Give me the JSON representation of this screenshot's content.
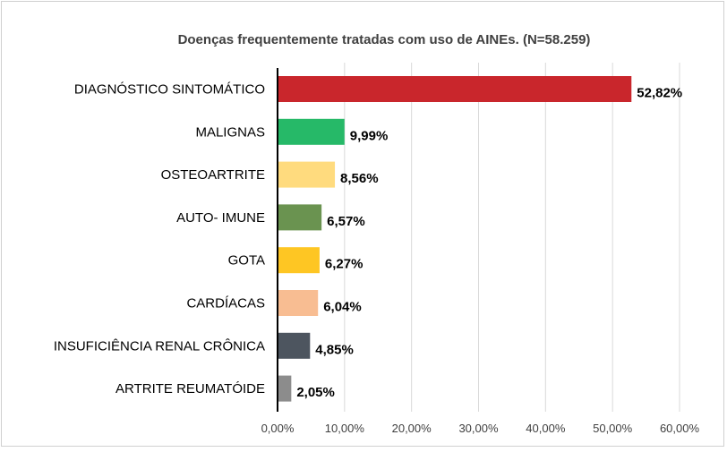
{
  "chart_data": {
    "type": "bar",
    "orientation": "horizontal",
    "title": "Doenças frequentemente tratadas com uso de AINEs. (N=58.259)",
    "categories": [
      "DIAGNÓSTICO SINTOMÁTICO",
      "MALIGNAS",
      "OSTEOARTRITE",
      "AUTO- IMUNE",
      "GOTA",
      "CARDÍACAS",
      "INSUFICIÊNCIA RENAL CRÔNICA",
      "ARTRITE REUMATÓIDE"
    ],
    "values": [
      52.82,
      9.99,
      8.56,
      6.57,
      6.27,
      6.04,
      4.85,
      2.05
    ],
    "value_labels": [
      "52,82%",
      "9,99%",
      "8,56%",
      "6,57%",
      "6,27%",
      "6,04%",
      "4,85%",
      "2,05%"
    ],
    "colors": [
      "#c9262c",
      "#26b968",
      "#ffdb7e",
      "#6a9350",
      "#fec623",
      "#f8bd92",
      "#4d555f",
      "#8c8c8c"
    ],
    "xlim": [
      0,
      60
    ],
    "x_ticks": [
      0,
      10,
      20,
      30,
      40,
      50,
      60
    ],
    "x_tick_labels": [
      "0,00%",
      "10,00%",
      "20,00%",
      "30,00%",
      "40,00%",
      "50,00%",
      "60,00%"
    ],
    "grid": true,
    "legend": "none"
  }
}
